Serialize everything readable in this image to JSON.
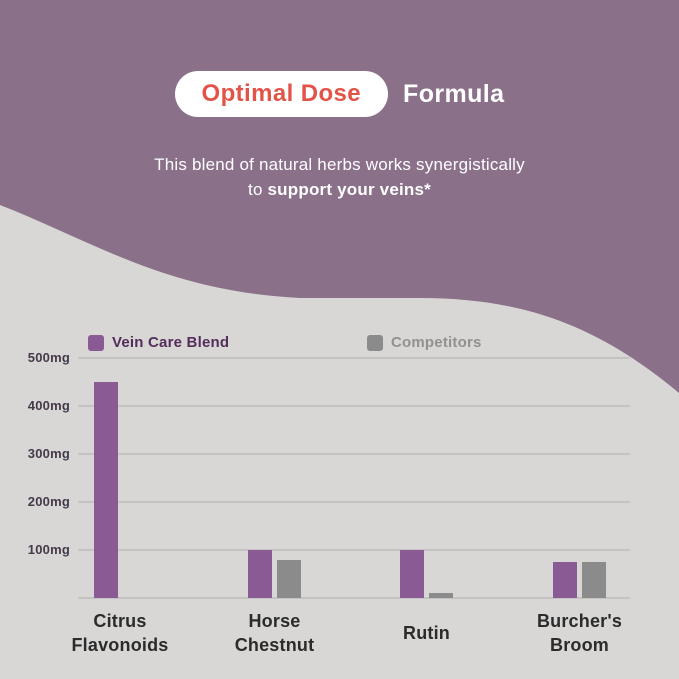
{
  "colors": {
    "background_purple": "#8a7089",
    "panel_gray": "#d8d7d5",
    "accent_red": "#e25449",
    "pill_background": "#ffffff",
    "title_text": "#ffffff",
    "grid_line": "#c4c3c1",
    "axis_label": "#45394a",
    "category_label": "#2b2b2b",
    "legend_vein_text": "#532d5c",
    "legend_competitor_text": "#919191"
  },
  "header": {
    "badge_label": "Optimal Dose",
    "title_suffix": "Formula",
    "subtitle_line1": "This blend of natural herbs works synergistically",
    "subtitle_line2_prefix": "to",
    "subtitle_line2_bold": "support your veins*"
  },
  "legend": [
    {
      "label": "Vein Care Blend",
      "color": "#8a5a94"
    },
    {
      "label": "Competitors",
      "color": "#8b8b8b"
    }
  ],
  "chart_data": {
    "type": "bar",
    "title": "Optimal Dose Formula",
    "unit": "mg",
    "categories": [
      "Citrus Flavonoids",
      "Horse Chestnut",
      "Rutin",
      "Burcher's Broom"
    ],
    "category_lines": [
      [
        "Citrus",
        "Flavonoids"
      ],
      [
        "Horse",
        "Chestnut"
      ],
      [
        "Rutin"
      ],
      [
        "Burcher's",
        "Broom"
      ]
    ],
    "series": [
      {
        "name": "Vein Care Blend",
        "color": "#8a5a94",
        "values": [
          450,
          100,
          100,
          75
        ]
      },
      {
        "name": "Competitors",
        "color": "#8b8b8b",
        "values": [
          0,
          80,
          10,
          75
        ]
      }
    ],
    "ylim": [
      0,
      500
    ],
    "yticks": [
      {
        "value": 500,
        "label": "500mg"
      },
      {
        "value": 400,
        "label": "400mg"
      },
      {
        "value": 300,
        "label": "300mg"
      },
      {
        "value": 200,
        "label": "200mg"
      },
      {
        "value": 100,
        "label": "100mg"
      },
      {
        "value": 0,
        "label": ""
      }
    ],
    "grid": true,
    "legend_position": "top-of-plot"
  }
}
